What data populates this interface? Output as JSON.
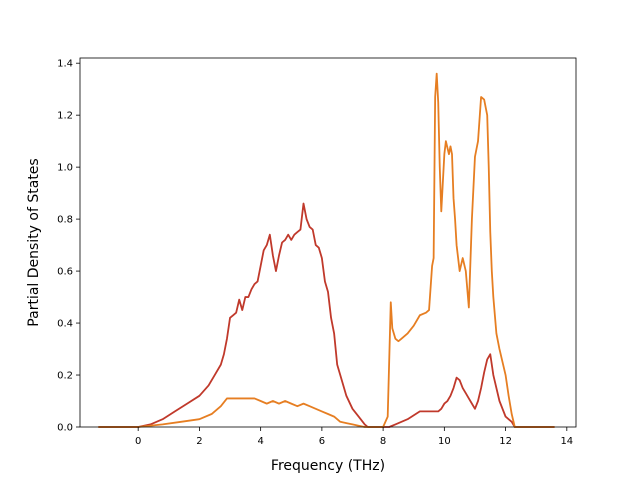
{
  "chart_data": {
    "type": "line",
    "title": "",
    "xlabel": "Frequency (THz)",
    "ylabel": "Partial Density of States",
    "xlim": [
      -1.9,
      14.3
    ],
    "ylim": [
      0.0,
      1.42
    ],
    "xticks": [
      0,
      2,
      4,
      6,
      8,
      10,
      12,
      14
    ],
    "yticks": [
      0.0,
      0.2,
      0.4,
      0.6,
      0.8,
      1.0,
      1.2,
      1.4
    ],
    "grid": false,
    "legend": "none",
    "series": [
      {
        "color": "#c0392b",
        "x": [
          -1.3,
          0.0,
          0.4,
          0.8,
          1.2,
          1.6,
          2.0,
          2.3,
          2.5,
          2.7,
          2.8,
          2.9,
          3.0,
          3.1,
          3.2,
          3.3,
          3.4,
          3.5,
          3.6,
          3.7,
          3.8,
          3.9,
          4.0,
          4.1,
          4.2,
          4.3,
          4.4,
          4.5,
          4.6,
          4.7,
          4.8,
          4.9,
          5.0,
          5.1,
          5.2,
          5.3,
          5.4,
          5.5,
          5.6,
          5.7,
          5.8,
          5.9,
          6.0,
          6.1,
          6.2,
          6.3,
          6.4,
          6.5,
          6.6,
          6.8,
          7.0,
          7.2,
          7.4,
          7.5,
          8.0,
          8.2,
          8.4,
          8.8,
          9.2,
          9.4,
          9.6,
          9.8,
          9.9,
          10.0,
          10.1,
          10.2,
          10.3,
          10.4,
          10.5,
          10.6,
          10.7,
          10.8,
          10.9,
          11.0,
          11.1,
          11.2,
          11.3,
          11.4,
          11.5,
          11.6,
          11.8,
          12.0,
          12.2,
          12.3,
          13.6
        ],
        "y": [
          0.0,
          0.0,
          0.01,
          0.03,
          0.06,
          0.09,
          0.12,
          0.16,
          0.2,
          0.24,
          0.28,
          0.34,
          0.42,
          0.43,
          0.44,
          0.49,
          0.45,
          0.5,
          0.5,
          0.53,
          0.55,
          0.56,
          0.62,
          0.68,
          0.7,
          0.74,
          0.66,
          0.6,
          0.66,
          0.71,
          0.72,
          0.74,
          0.72,
          0.74,
          0.75,
          0.76,
          0.86,
          0.8,
          0.77,
          0.76,
          0.7,
          0.69,
          0.65,
          0.56,
          0.52,
          0.42,
          0.36,
          0.24,
          0.2,
          0.12,
          0.07,
          0.04,
          0.01,
          0.0,
          0.0,
          0.0,
          0.01,
          0.03,
          0.06,
          0.06,
          0.06,
          0.06,
          0.07,
          0.09,
          0.1,
          0.12,
          0.15,
          0.19,
          0.18,
          0.15,
          0.13,
          0.11,
          0.09,
          0.07,
          0.1,
          0.15,
          0.21,
          0.26,
          0.28,
          0.2,
          0.1,
          0.04,
          0.02,
          0.0,
          0.0
        ]
      },
      {
        "color": "#e67e22",
        "x": [
          -1.3,
          0.0,
          0.8,
          1.4,
          2.0,
          2.4,
          2.7,
          2.9,
          3.0,
          3.2,
          3.4,
          3.6,
          3.8,
          4.0,
          4.2,
          4.4,
          4.6,
          4.8,
          5.0,
          5.2,
          5.4,
          5.6,
          5.8,
          6.0,
          6.2,
          6.4,
          6.6,
          6.8,
          7.0,
          7.2,
          7.4,
          8.0,
          8.15,
          8.25,
          8.3,
          8.4,
          8.5,
          8.6,
          8.8,
          9.0,
          9.2,
          9.4,
          9.5,
          9.6,
          9.65,
          9.7,
          9.75,
          9.8,
          9.85,
          9.9,
          10.0,
          10.05,
          10.15,
          10.2,
          10.25,
          10.3,
          10.35,
          10.4,
          10.5,
          10.6,
          10.7,
          10.8,
          10.9,
          11.0,
          11.1,
          11.2,
          11.3,
          11.4,
          11.45,
          11.5,
          11.55,
          11.6,
          11.7,
          11.8,
          12.0,
          12.1,
          12.2,
          12.3,
          12.35,
          13.6
        ],
        "y": [
          0.0,
          0.0,
          0.01,
          0.02,
          0.03,
          0.05,
          0.08,
          0.11,
          0.11,
          0.11,
          0.11,
          0.11,
          0.11,
          0.1,
          0.09,
          0.1,
          0.09,
          0.1,
          0.09,
          0.08,
          0.09,
          0.08,
          0.07,
          0.06,
          0.05,
          0.04,
          0.02,
          0.015,
          0.01,
          0.005,
          0.0,
          0.0,
          0.04,
          0.48,
          0.38,
          0.34,
          0.33,
          0.34,
          0.36,
          0.39,
          0.43,
          0.44,
          0.45,
          0.62,
          0.65,
          1.27,
          1.36,
          1.25,
          1.0,
          0.83,
          1.05,
          1.1,
          1.05,
          1.08,
          1.05,
          0.88,
          0.8,
          0.7,
          0.6,
          0.65,
          0.6,
          0.46,
          0.8,
          1.04,
          1.1,
          1.27,
          1.26,
          1.2,
          1.0,
          0.75,
          0.6,
          0.5,
          0.36,
          0.3,
          0.2,
          0.12,
          0.05,
          0.0,
          0.0,
          0.0
        ]
      }
    ]
  }
}
